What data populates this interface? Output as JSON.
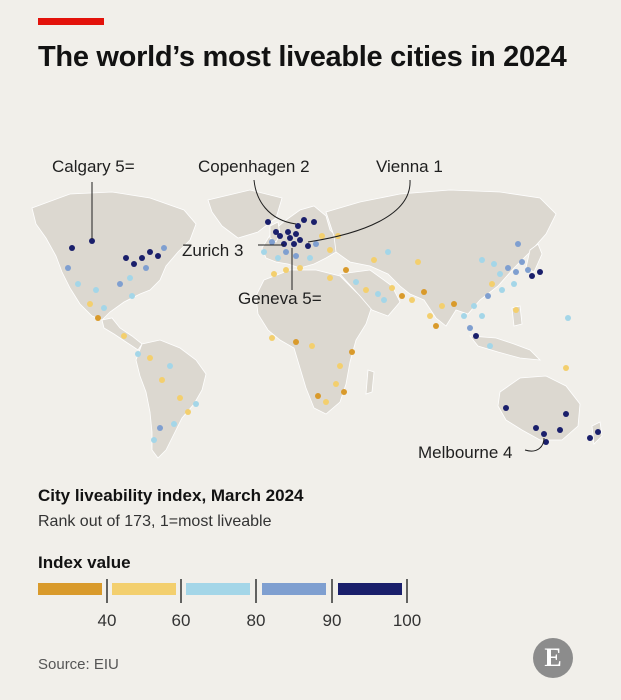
{
  "header": {
    "title": "The world’s most liveable cities in 2024"
  },
  "map": {
    "annotations": {
      "calgary": "Calgary 5=",
      "copenhagen": "Copenhagen 2",
      "vienna": "Vienna 1",
      "zurich": "Zurich 3",
      "geneva": "Geneva 5=",
      "melbourne": "Melbourne 4"
    },
    "colors": {
      "land": "#dcd8d0",
      "border": "#ffffff",
      "bin_40": "#d99a2b",
      "bin_60": "#f3cf6e",
      "bin_80": "#a4d6e8",
      "bin_90": "#7f9fd0",
      "bin_100": "#1a1f6b"
    }
  },
  "legend": {
    "subtitle": "City liveability index, March 2024",
    "subsubtitle": "Rank out of 173, 1=most liveable",
    "title": "Index value",
    "ticks": [
      "40",
      "60",
      "80",
      "90",
      "100"
    ],
    "bins": [
      {
        "name": "below-40",
        "color": "#d99a2b"
      },
      {
        "name": "40-60",
        "color": "#f3cf6e"
      },
      {
        "name": "60-80",
        "color": "#a4d6e8"
      },
      {
        "name": "80-90",
        "color": "#7f9fd0"
      },
      {
        "name": "90-100",
        "color": "#1a1f6b"
      }
    ]
  },
  "footer": {
    "source": "Source: EIU",
    "logo_letter": "E"
  }
}
